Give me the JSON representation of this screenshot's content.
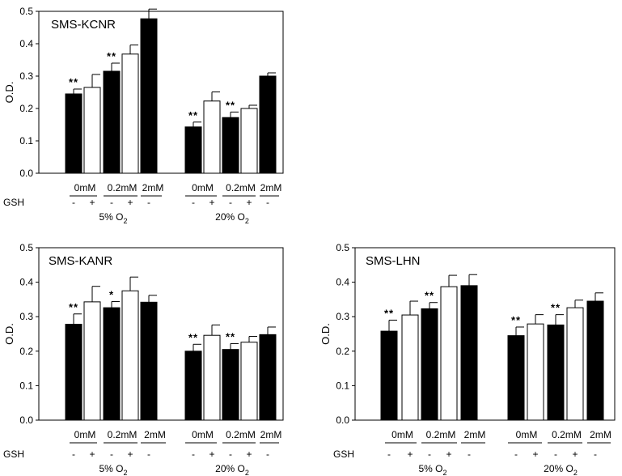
{
  "chart_data": [
    {
      "type": "bar",
      "title": "SMS-KCNR",
      "ylabel": "O.D.",
      "ylim": [
        0,
        0.5
      ],
      "yticks": [
        "0.0",
        "0.1",
        "0.2",
        "0.3",
        "0.4",
        "0.5"
      ],
      "gsh_label": "GSH",
      "groups": [
        {
          "label": "5% O",
          "label_sub": "2",
          "bars": [
            {
              "conc": "0mM",
              "gsh": "-",
              "value": 0.245,
              "error": 0.015,
              "sig": "**"
            },
            {
              "conc": "0mM",
              "gsh": "+",
              "value": 0.265,
              "error": 0.04,
              "sig": ""
            },
            {
              "conc": "0.2mM",
              "gsh": "-",
              "value": 0.315,
              "error": 0.025,
              "sig": "**"
            },
            {
              "conc": "0.2mM",
              "gsh": "+",
              "value": 0.368,
              "error": 0.028,
              "sig": ""
            },
            {
              "conc": "2mM",
              "gsh": "-",
              "value": 0.477,
              "error": 0.03,
              "sig": ""
            }
          ],
          "conc_labels": [
            "0mM",
            "0.2mM",
            "2mM"
          ]
        },
        {
          "label": "20% O",
          "label_sub": "2",
          "bars": [
            {
              "conc": "0mM",
              "gsh": "-",
              "value": 0.143,
              "error": 0.015,
              "sig": "**"
            },
            {
              "conc": "0mM",
              "gsh": "+",
              "value": 0.223,
              "error": 0.028,
              "sig": ""
            },
            {
              "conc": "0.2mM",
              "gsh": "-",
              "value": 0.172,
              "error": 0.017,
              "sig": "**"
            },
            {
              "conc": "0.2mM",
              "gsh": "+",
              "value": 0.2,
              "error": 0.01,
              "sig": ""
            },
            {
              "conc": "2mM",
              "gsh": "-",
              "value": 0.3,
              "error": 0.01,
              "sig": ""
            }
          ],
          "conc_labels": [
            "0mM",
            "0.2mM",
            "2mM"
          ]
        }
      ]
    },
    {
      "type": "bar",
      "title": "SMS-KANR",
      "ylabel": "O.D.",
      "ylim": [
        0,
        0.5
      ],
      "yticks": [
        "0.0",
        "0.1",
        "0.2",
        "0.3",
        "0.4",
        "0.5"
      ],
      "gsh_label": "GSH",
      "groups": [
        {
          "label": "5% O",
          "label_sub": "2",
          "bars": [
            {
              "conc": "0mM",
              "gsh": "-",
              "value": 0.278,
              "error": 0.03,
              "sig": "**"
            },
            {
              "conc": "0mM",
              "gsh": "+",
              "value": 0.343,
              "error": 0.045,
              "sig": ""
            },
            {
              "conc": "0.2mM",
              "gsh": "-",
              "value": 0.326,
              "error": 0.018,
              "sig": "*"
            },
            {
              "conc": "0.2mM",
              "gsh": "+",
              "value": 0.375,
              "error": 0.04,
              "sig": ""
            },
            {
              "conc": "2mM",
              "gsh": "-",
              "value": 0.342,
              "error": 0.02,
              "sig": ""
            }
          ],
          "conc_labels": [
            "0mM",
            "0.2mM",
            "2mM"
          ]
        },
        {
          "label": "20% O",
          "label_sub": "2",
          "bars": [
            {
              "conc": "0mM",
              "gsh": "-",
              "value": 0.2,
              "error": 0.02,
              "sig": "**"
            },
            {
              "conc": "0mM",
              "gsh": "+",
              "value": 0.246,
              "error": 0.03,
              "sig": ""
            },
            {
              "conc": "0.2mM",
              "gsh": "-",
              "value": 0.205,
              "error": 0.017,
              "sig": "**"
            },
            {
              "conc": "0.2mM",
              "gsh": "+",
              "value": 0.226,
              "error": 0.017,
              "sig": ""
            },
            {
              "conc": "2mM",
              "gsh": "-",
              "value": 0.248,
              "error": 0.022,
              "sig": ""
            }
          ],
          "conc_labels": [
            "0mM",
            "0.2mM",
            "2mM"
          ]
        }
      ]
    },
    {
      "type": "bar",
      "title": "SMS-LHN",
      "ylabel": "O.D.",
      "ylim": [
        0,
        0.5
      ],
      "yticks": [
        "0.0",
        "0.1",
        "0.2",
        "0.3",
        "0.4",
        "0.5"
      ],
      "gsh_label": "GSH",
      "groups": [
        {
          "label": "5% O",
          "label_sub": "2",
          "bars": [
            {
              "conc": "0mM",
              "gsh": "-",
              "value": 0.258,
              "error": 0.032,
              "sig": "**"
            },
            {
              "conc": "0mM",
              "gsh": "+",
              "value": 0.305,
              "error": 0.04,
              "sig": ""
            },
            {
              "conc": "0.2mM",
              "gsh": "-",
              "value": 0.323,
              "error": 0.018,
              "sig": "**"
            },
            {
              "conc": "0.2mM",
              "gsh": "+",
              "value": 0.387,
              "error": 0.033,
              "sig": ""
            },
            {
              "conc": "2mM",
              "gsh": "-",
              "value": 0.39,
              "error": 0.032,
              "sig": ""
            }
          ],
          "conc_labels": [
            "0mM",
            "0.2mM",
            "2mM"
          ]
        },
        {
          "label": "20% O",
          "label_sub": "2",
          "bars": [
            {
              "conc": "0mM",
              "gsh": "-",
              "value": 0.245,
              "error": 0.025,
              "sig": "**"
            },
            {
              "conc": "0mM",
              "gsh": "+",
              "value": 0.279,
              "error": 0.027,
              "sig": ""
            },
            {
              "conc": "0.2mM",
              "gsh": "-",
              "value": 0.276,
              "error": 0.03,
              "sig": "**"
            },
            {
              "conc": "0.2mM",
              "gsh": "+",
              "value": 0.326,
              "error": 0.022,
              "sig": ""
            },
            {
              "conc": "2mM",
              "gsh": "-",
              "value": 0.345,
              "error": 0.024,
              "sig": ""
            }
          ],
          "conc_labels": [
            "0mM",
            "0.2mM",
            "2mM"
          ]
        }
      ]
    }
  ]
}
